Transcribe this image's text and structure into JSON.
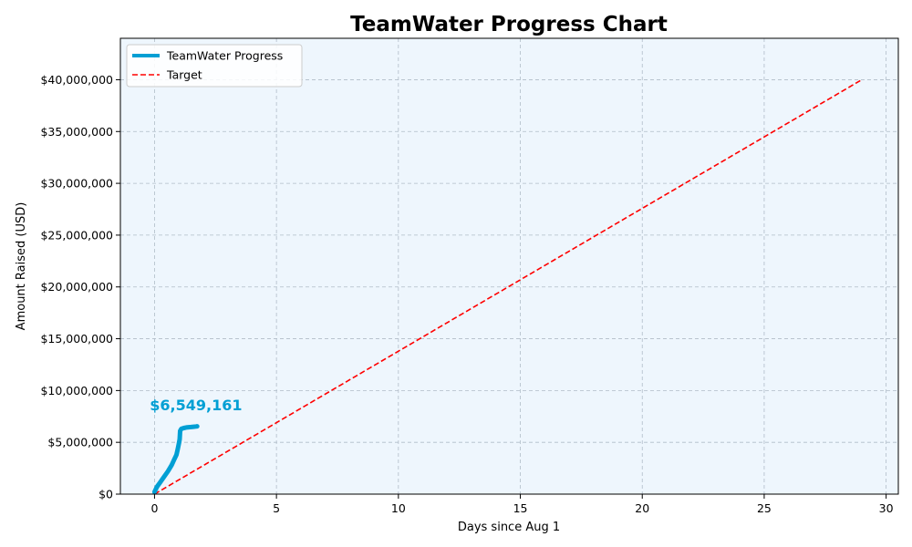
{
  "chart_data": {
    "type": "line",
    "title": "TeamWater Progress Chart",
    "xlabel": "Days since Aug 1",
    "ylabel": "Amount Raised (USD)",
    "xlim": [
      -1.4,
      30.5
    ],
    "ylim": [
      0,
      44000000
    ],
    "x_ticks": [
      0,
      5,
      10,
      15,
      20,
      25,
      30
    ],
    "y_ticks": [
      0,
      5000000,
      10000000,
      15000000,
      20000000,
      25000000,
      30000000,
      35000000,
      40000000
    ],
    "y_tick_labels": [
      "$0",
      "$5,000,000",
      "$10,000,000",
      "$15,000,000",
      "$20,000,000",
      "$25,000,000",
      "$30,000,000",
      "$35,000,000",
      "$40,000,000"
    ],
    "grid": true,
    "legend_position": "top-left",
    "background_color": "#eef6fd",
    "series": [
      {
        "name": "TeamWater Progress",
        "color": "#009fd4",
        "style": "solid",
        "x": [
          0,
          0.1,
          0.25,
          0.4,
          0.55,
          0.7,
          0.8,
          0.9,
          0.95,
          1.0,
          1.03,
          1.05,
          1.1,
          1.2,
          1.3,
          1.4,
          1.5,
          1.6,
          1.7,
          1.75
        ],
        "y": [
          200000,
          700000,
          1200000,
          1700000,
          2200000,
          2800000,
          3300000,
          3800000,
          4300000,
          4900000,
          5300000,
          6100000,
          6300000,
          6380000,
          6430000,
          6460000,
          6480000,
          6500000,
          6530000,
          6549161
        ]
      },
      {
        "name": "Target",
        "color": "#ff0000",
        "style": "dashed",
        "x": [
          0,
          29
        ],
        "y": [
          0,
          40000000
        ]
      }
    ],
    "annotations": [
      {
        "text": "$6,549,161",
        "x": 1.7,
        "y": 7400000,
        "color": "#009fd4"
      }
    ]
  }
}
